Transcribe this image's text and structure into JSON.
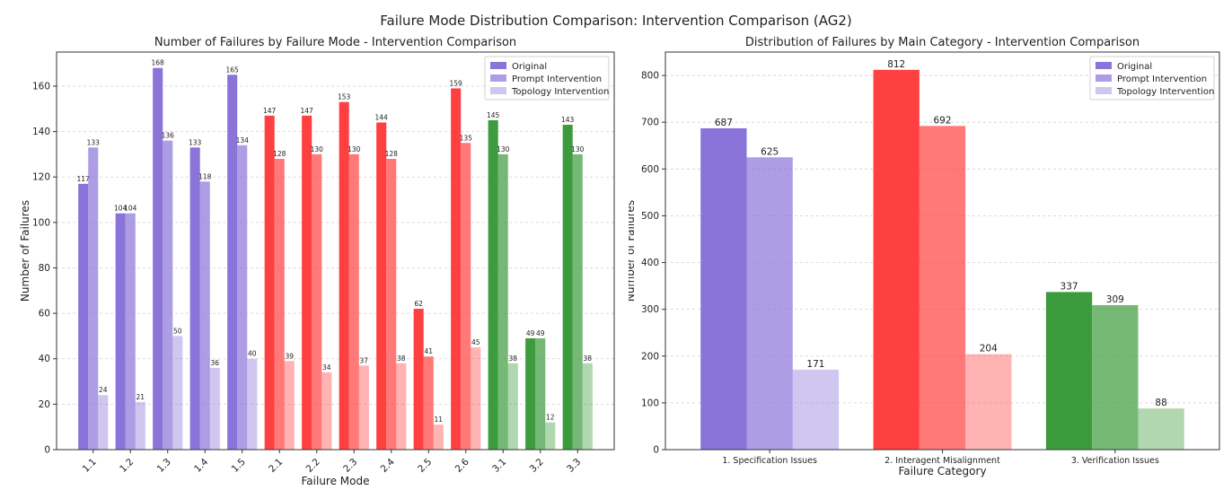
{
  "suptitle": "Failure Mode Distribution Comparison: Intervention Comparison (AG2)",
  "chart_data": [
    {
      "type": "bar",
      "title": "Number of Failures by Failure Mode - Intervention Comparison",
      "xlabel": "Failure Mode",
      "ylabel": "Number of Failures",
      "ylim": [
        0,
        175
      ],
      "yticks": [
        0,
        20,
        40,
        60,
        80,
        100,
        120,
        140,
        160
      ],
      "grid": "y-dashed",
      "legend_position": "top-right",
      "categories": [
        "1.1",
        "1.2",
        "1.3",
        "1.4",
        "1.5",
        "2.1",
        "2.2",
        "2.3",
        "2.4",
        "2.5",
        "2.6",
        "3.1",
        "3.2",
        "3.3"
      ],
      "category_group_colors": [
        "#8a73d9",
        "#8a73d9",
        "#8a73d9",
        "#8a73d9",
        "#8a73d9",
        "#ff4040",
        "#ff4040",
        "#ff4040",
        "#ff4040",
        "#ff4040",
        "#ff4040",
        "#3c9b3c",
        "#3c9b3c",
        "#3c9b3c"
      ],
      "series": [
        {
          "name": "Original",
          "opacity": 1.0,
          "values": [
            117,
            104,
            168,
            133,
            165,
            147,
            147,
            153,
            144,
            62,
            159,
            145,
            49,
            143
          ]
        },
        {
          "name": "Prompt Intervention",
          "opacity": 0.7,
          "values": [
            133,
            104,
            136,
            118,
            134,
            128,
            130,
            130,
            128,
            41,
            135,
            130,
            49,
            130
          ]
        },
        {
          "name": "Topology Intervention",
          "opacity": 0.4,
          "values": [
            24,
            21,
            50,
            36,
            40,
            39,
            34,
            37,
            38,
            11,
            45,
            38,
            12,
            38
          ]
        }
      ]
    },
    {
      "type": "bar",
      "title": "Distribution of Failures by Main Category - Intervention Comparison",
      "xlabel": "Failure Category",
      "ylabel": "Number of Failures",
      "ylim": [
        0,
        850
      ],
      "yticks": [
        0,
        100,
        200,
        300,
        400,
        500,
        600,
        700,
        800
      ],
      "grid": "y-dashed",
      "legend_position": "top-right",
      "categories": [
        "1. Specification Issues",
        "2. Interagent Misalignment",
        "3. Verification Issues"
      ],
      "category_group_colors": [
        "#8a73d9",
        "#ff4040",
        "#3c9b3c"
      ],
      "series": [
        {
          "name": "Original",
          "opacity": 1.0,
          "values": [
            687,
            812,
            337
          ]
        },
        {
          "name": "Prompt Intervention",
          "opacity": 0.7,
          "values": [
            625,
            692,
            309
          ]
        },
        {
          "name": "Topology Intervention",
          "opacity": 0.4,
          "values": [
            171,
            204,
            88
          ]
        }
      ]
    }
  ]
}
